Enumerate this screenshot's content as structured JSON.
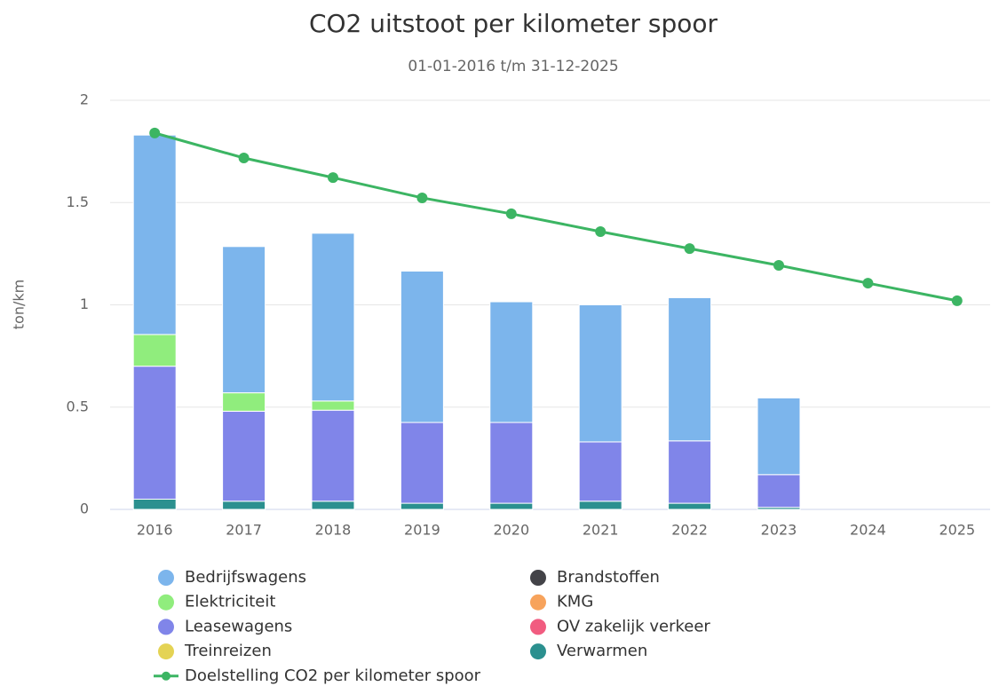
{
  "chart_data": {
    "type": "stacked_bar_line",
    "title": "CO2 uitstoot per kilometer spoor",
    "subtitle": "01-01-2016 t/m 31-12-2025",
    "y_axis_label": "ton/km",
    "categories": [
      "2016",
      "2017",
      "2018",
      "2019",
      "2020",
      "2021",
      "2022",
      "2023",
      "2024",
      "2025"
    ],
    "ylim": [
      0,
      2
    ],
    "yticks": [
      0,
      0.5,
      1,
      1.5,
      2
    ],
    "grid": true,
    "series": [
      {
        "name": "Bedrijfswagens",
        "color": "#7cb5ec",
        "values": [
          0.975,
          0.715,
          0.82,
          0.74,
          0.59,
          0.67,
          0.7,
          0.375,
          null,
          null
        ]
      },
      {
        "name": "Elektriciteit",
        "color": "#90ed7d",
        "values": [
          0.155,
          0.09,
          0.045,
          0,
          0,
          0,
          0,
          0,
          null,
          null
        ]
      },
      {
        "name": "Leasewagens",
        "color": "#8085e9",
        "values": [
          0.65,
          0.44,
          0.445,
          0.395,
          0.395,
          0.29,
          0.305,
          0.16,
          null,
          null
        ]
      },
      {
        "name": "Treinreizen",
        "color": "#e4d354",
        "values": [
          0,
          0,
          0,
          0,
          0,
          0,
          0,
          0,
          null,
          null
        ]
      },
      {
        "name": "Brandstoffen",
        "color": "#434348",
        "values": [
          0,
          0,
          0,
          0,
          0,
          0,
          0,
          0,
          null,
          null
        ]
      },
      {
        "name": "KMG",
        "color": "#f7a35c",
        "values": [
          0,
          0,
          0,
          0,
          0,
          0,
          0,
          0,
          null,
          null
        ]
      },
      {
        "name": "OV zakelijk verkeer",
        "color": "#f15c80",
        "values": [
          0,
          0,
          0,
          0,
          0,
          0,
          0,
          0,
          null,
          null
        ]
      },
      {
        "name": "Verwarmen",
        "color": "#2b908f",
        "values": [
          0.05,
          0.04,
          0.04,
          0.03,
          0.03,
          0.04,
          0.03,
          0.01,
          null,
          null
        ]
      },
      {
        "name": "Doelstelling CO2 per kilometer spoor",
        "color": "#3cb563",
        "type": "line",
        "values": [
          1.84,
          1.718,
          1.622,
          1.523,
          1.445,
          1.358,
          1.275,
          1.193,
          1.106,
          1.02
        ]
      }
    ]
  }
}
